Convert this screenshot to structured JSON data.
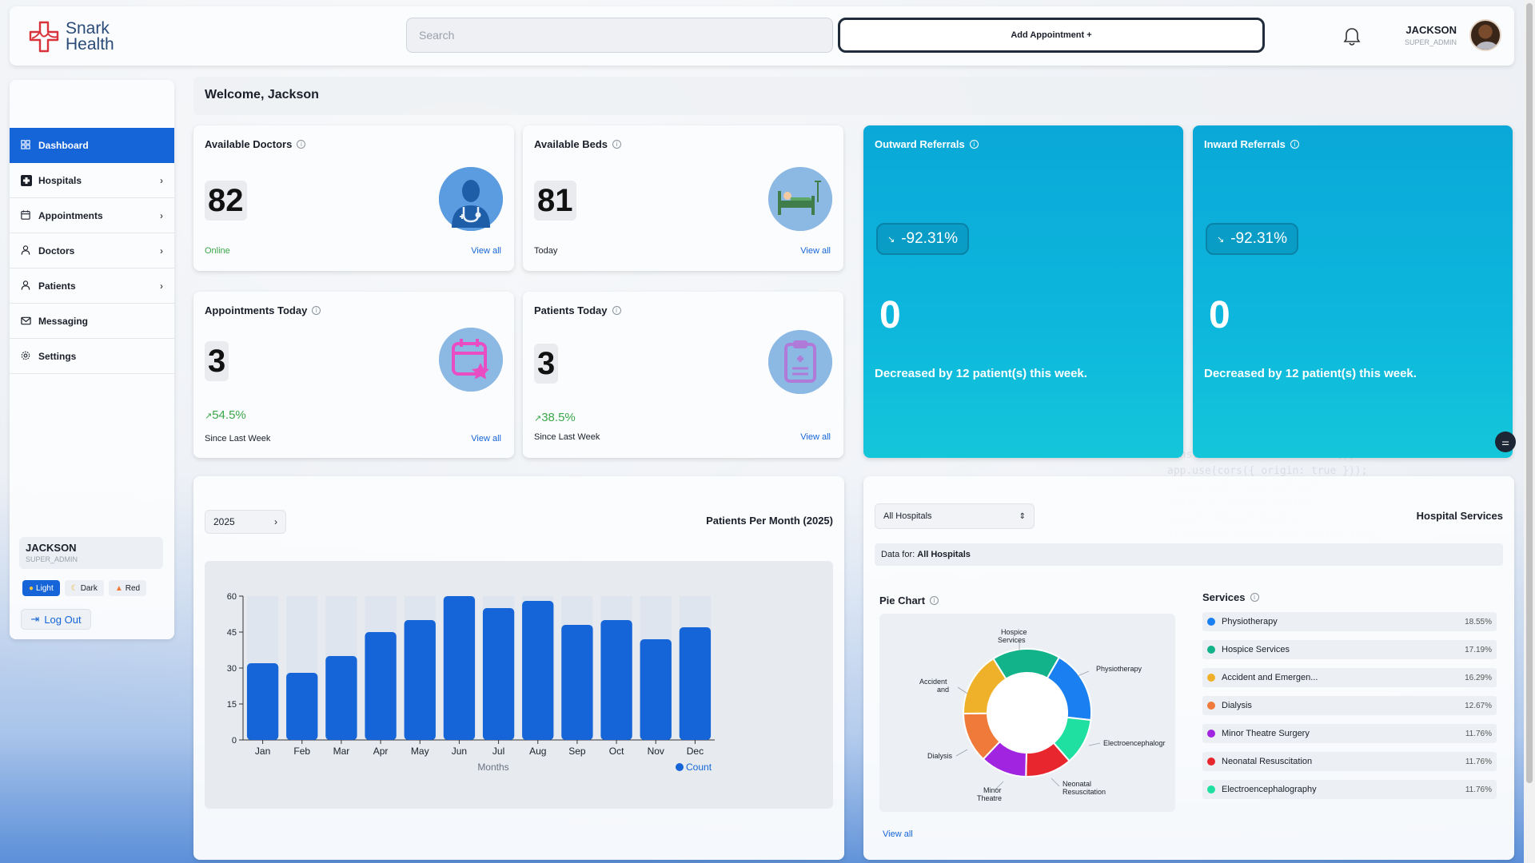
{
  "brand": {
    "line1": "Snark",
    "line2": "Health",
    "color": "#d8333a"
  },
  "header": {
    "search_placeholder": "Search",
    "add_appointment": "Add Appointment +",
    "user_name": "JACKSON",
    "user_role": "SUPER_ADMIN"
  },
  "sidebar": {
    "items": [
      {
        "label": "Dashboard",
        "icon": "grid-icon"
      },
      {
        "label": "Hospitals",
        "icon": "hospital-cross-icon"
      },
      {
        "label": "Appointments",
        "icon": "calendar-icon"
      },
      {
        "label": "Doctors",
        "icon": "person-icon"
      },
      {
        "label": "Patients",
        "icon": "person-icon"
      },
      {
        "label": "Messaging",
        "icon": "mail-icon"
      },
      {
        "label": "Settings",
        "icon": "gear-icon"
      }
    ],
    "user_name": "JACKSON",
    "user_role": "SUPER_ADMIN",
    "themes": [
      "Light",
      "Dark",
      "Red"
    ],
    "logout": "Log Out"
  },
  "welcome": "Welcome, Jackson",
  "cards": {
    "doctors": {
      "title": "Available Doctors",
      "value": "82",
      "sub": "Online",
      "view": "View all"
    },
    "beds": {
      "title": "Available Beds",
      "value": "81",
      "sub": "Today",
      "view": "View all"
    },
    "appointments": {
      "title": "Appointments Today",
      "value": "3",
      "pct": "54.5%",
      "sub": "Since Last Week",
      "view": "View all"
    },
    "patients": {
      "title": "Patients Today",
      "value": "3",
      "pct": "38.5%",
      "sub": "Since Last Week",
      "view": "View all"
    }
  },
  "referrals": {
    "outward": {
      "title": "Outward Referrals",
      "badge": "-92.31%",
      "value": "0",
      "msg": "Decreased by 12 patient(s) this week."
    },
    "inward": {
      "title": "Inward Referrals",
      "badge": "-92.31%",
      "value": "0",
      "msg": "Decreased by 12 patient(s) this week."
    }
  },
  "patients_chart": {
    "year": "2025",
    "title": "Patients Per Month (2025)"
  },
  "chart_data": {
    "type": "bar",
    "title": "Patients Per Month (2025)",
    "categories": [
      "Jan",
      "Feb",
      "Mar",
      "Apr",
      "May",
      "Jun",
      "Jul",
      "Aug",
      "Sep",
      "Oct",
      "Nov",
      "Dec"
    ],
    "values": [
      32,
      28,
      35,
      45,
      50,
      60,
      55,
      58,
      48,
      50,
      42,
      47
    ],
    "xlabel": "Months",
    "ylabel": "",
    "ylim": [
      0,
      60
    ],
    "yticks": [
      0,
      15,
      30,
      45,
      60
    ],
    "legend": "Count",
    "color": "#1565d8"
  },
  "services": {
    "filter": "All Hospitals",
    "title": "Hospital Services",
    "data_for_label": "Data for:",
    "data_for_value": "All Hospitals",
    "pie_label": "Pie Chart",
    "list_label": "Services",
    "view": "View all",
    "items": [
      {
        "name": "Physiotherapy",
        "pct": "18.55%",
        "color": "#1a7ff0"
      },
      {
        "name": "Hospice Services",
        "pct": "17.19%",
        "color": "#12b38a"
      },
      {
        "name": "Accident and Emergen...",
        "pct": "16.29%",
        "color": "#f0b12a"
      },
      {
        "name": "Dialysis",
        "pct": "12.67%",
        "color": "#f07a3a"
      },
      {
        "name": "Minor Theatre Surgery",
        "pct": "11.76%",
        "color": "#a024e0"
      },
      {
        "name": "Neonatal Resuscitation",
        "pct": "11.76%",
        "color": "#e8262e"
      },
      {
        "name": "Electroencephalography",
        "pct": "11.76%",
        "color": "#1fe0a0"
      }
    ],
    "pie_labels": {
      "hospice_line1": "Hospice",
      "hospice_line2": "Services",
      "physio": "Physiotherapy",
      "accident_line1": "Accident",
      "accident_line2": "and",
      "eeg": "Electroencephalogr",
      "dialysis": "Dialysis",
      "minor_line1": "Minor",
      "minor_line2": "Theatre",
      "neonatal_line1": "Neonatal",
      "neonatal_line2": "Resuscitation"
    }
  },
  "pie_chart_data": {
    "type": "pie",
    "categories": [
      "Physiotherapy",
      "Electroencephalography",
      "Neonatal Resuscitation",
      "Minor Theatre Surgery",
      "Dialysis",
      "Accident and Emergency",
      "Hospice Services"
    ],
    "values": [
      18.55,
      11.76,
      11.76,
      11.76,
      12.67,
      16.29,
      17.19
    ],
    "colors": [
      "#1a7ff0",
      "#1fe0a0",
      "#e8262e",
      "#a024e0",
      "#f07a3a",
      "#f0b12a",
      "#12b38a"
    ]
  }
}
